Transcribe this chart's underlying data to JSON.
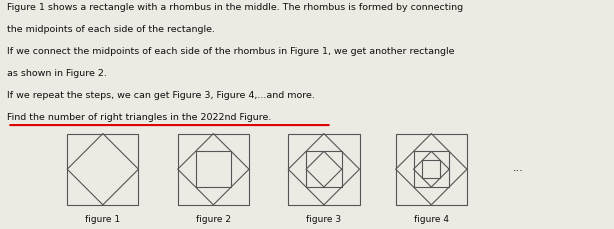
{
  "background_color": "#ede9e3",
  "text_color": "#111111",
  "title_lines": [
    "Figure 1 shows a rectangle with a rhombus in the middle. The rhombus is formed by connecting",
    "the midpoints of each side of the rectangle.",
    "If we connect the midpoints of each side of the rhombus in Figure 1, we get another rectangle",
    "as shown in Figure 2.",
    "If we repeat the steps, we can get Figure 3, Figure 4,...and more.",
    "Find the number of right triangles in the 2022nd Figure."
  ],
  "figure_labels": [
    "figure 1",
    "figure 2",
    "figure 3",
    "figure 4"
  ],
  "dots_text": "...",
  "line_color": "#555555",
  "line_width": 0.8,
  "fig_width": 6.14,
  "fig_height": 2.3,
  "dpi": 100,
  "underline_color": "#dd0000",
  "font_size_text": 6.8,
  "font_size_label": 6.5
}
